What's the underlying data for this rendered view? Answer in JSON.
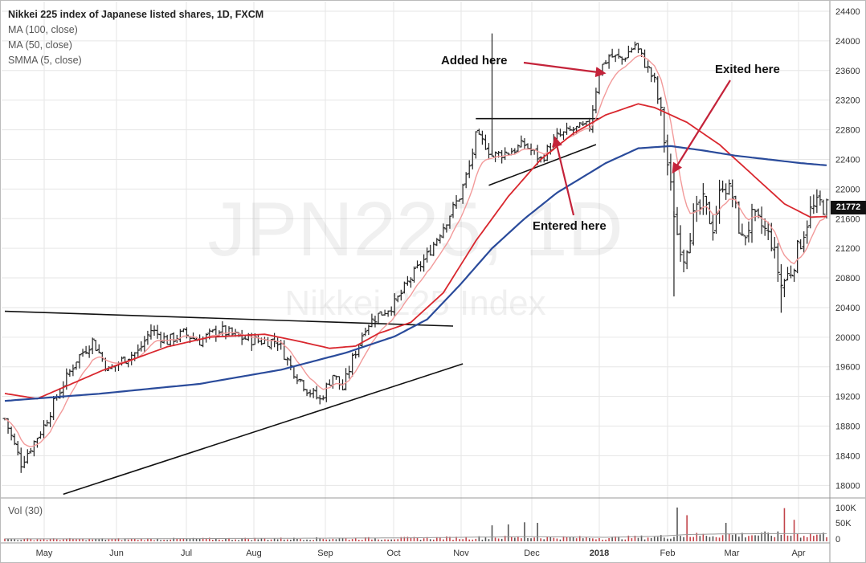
{
  "legend": {
    "title": "Nikkei 225 index of Japanese listed shares, 1D, FXCM",
    "ma100": "MA (100, close)",
    "ma50": "MA (50, close)",
    "smma5": "SMMA (5, close)"
  },
  "watermark": {
    "symbol": "JPN225, 1D",
    "name": "Nikkei 225 Index"
  },
  "volume_label": "Vol (30)",
  "annotations": {
    "added": "Added here",
    "entered": "Entered here",
    "exited": "Exited here"
  },
  "last_price": "21772",
  "colors": {
    "ma100": "#2a4b9b",
    "ma50": "#d9272e",
    "smma5": "#f29a9a",
    "bars": "#222222",
    "volume_up": "#c2444a",
    "volume_down": "#555555",
    "grid": "#e6e6e6",
    "trendlines": "#111111",
    "arrows": "#c4233a"
  },
  "chart_data": {
    "type": "ohlc",
    "instrument": "JPN225",
    "timeframe": "1D",
    "y_ticks": [
      18000,
      18400,
      18800,
      19200,
      19600,
      20000,
      20400,
      20800,
      21200,
      21600,
      22000,
      22400,
      22800,
      23200,
      23600,
      24000,
      24400
    ],
    "ylim": [
      17830,
      24530
    ],
    "x_ticks": [
      "May",
      "Jun",
      "Jul",
      "Aug",
      "Sep",
      "Oct",
      "Nov",
      "Dec",
      "2018",
      "Feb",
      "Mar",
      "Apr"
    ],
    "volume_ticks": [
      "100K",
      "50K",
      "0"
    ],
    "price_path": [
      [
        0,
        18900
      ],
      [
        5,
        18300
      ],
      [
        12,
        18800
      ],
      [
        16,
        19200
      ],
      [
        22,
        19700
      ],
      [
        27,
        19950
      ],
      [
        32,
        19550
      ],
      [
        38,
        19750
      ],
      [
        41,
        19800
      ],
      [
        45,
        20100
      ],
      [
        50,
        19950
      ],
      [
        55,
        20050
      ],
      [
        60,
        19950
      ],
      [
        66,
        20100
      ],
      [
        72,
        20000
      ],
      [
        78,
        19950
      ],
      [
        84,
        19950
      ],
      [
        88,
        19600
      ],
      [
        93,
        19300
      ],
      [
        97,
        19150
      ],
      [
        101,
        19500
      ],
      [
        104,
        19300
      ],
      [
        107,
        19700
      ],
      [
        111,
        20150
      ],
      [
        115,
        20300
      ],
      [
        120,
        20450
      ],
      [
        125,
        20800
      ],
      [
        130,
        21100
      ],
      [
        135,
        21500
      ],
      [
        140,
        21900
      ],
      [
        143,
        22300
      ],
      [
        145,
        22700
      ],
      [
        148,
        22600
      ],
      [
        150,
        22450
      ],
      [
        155,
        22500
      ],
      [
        160,
        22600
      ],
      [
        165,
        22400
      ],
      [
        170,
        22700
      ],
      [
        175,
        22800
      ],
      [
        180,
        22850
      ],
      [
        183,
        23600
      ],
      [
        186,
        23800
      ],
      [
        190,
        23750
      ],
      [
        194,
        23950
      ],
      [
        197,
        23700
      ],
      [
        200,
        23450
      ],
      [
        202,
        23000
      ],
      [
        205,
        22000
      ],
      [
        207,
        21400
      ],
      [
        209,
        21100
      ],
      [
        212,
        21600
      ],
      [
        215,
        21800
      ],
      [
        218,
        21500
      ],
      [
        221,
        22100
      ],
      [
        224,
        21900
      ],
      [
        227,
        21300
      ],
      [
        230,
        21600
      ],
      [
        233,
        21500
      ],
      [
        236,
        21300
      ],
      [
        239,
        20700
      ],
      [
        242,
        20900
      ],
      [
        245,
        21300
      ],
      [
        248,
        21700
      ],
      [
        251,
        21800
      ],
      [
        253,
        21750
      ]
    ],
    "ma100_path": [
      [
        0,
        19140
      ],
      [
        30,
        19240
      ],
      [
        60,
        19370
      ],
      [
        85,
        19560
      ],
      [
        105,
        19790
      ],
      [
        120,
        20010
      ],
      [
        130,
        20240
      ],
      [
        140,
        20700
      ],
      [
        150,
        21200
      ],
      [
        160,
        21600
      ],
      [
        170,
        21950
      ],
      [
        185,
        22350
      ],
      [
        195,
        22550
      ],
      [
        205,
        22580
      ],
      [
        215,
        22520
      ],
      [
        225,
        22450
      ],
      [
        235,
        22400
      ],
      [
        245,
        22350
      ],
      [
        253,
        22320
      ]
    ],
    "ma50_path": [
      [
        0,
        19240
      ],
      [
        10,
        19170
      ],
      [
        30,
        19550
      ],
      [
        50,
        19870
      ],
      [
        63,
        20000
      ],
      [
        80,
        20040
      ],
      [
        90,
        19950
      ],
      [
        100,
        19850
      ],
      [
        108,
        19880
      ],
      [
        115,
        20050
      ],
      [
        125,
        20200
      ],
      [
        135,
        20600
      ],
      [
        145,
        21300
      ],
      [
        155,
        21900
      ],
      [
        165,
        22400
      ],
      [
        175,
        22750
      ],
      [
        185,
        23000
      ],
      [
        195,
        23150
      ],
      [
        200,
        23100
      ],
      [
        210,
        22900
      ],
      [
        220,
        22600
      ],
      [
        230,
        22200
      ],
      [
        240,
        21800
      ],
      [
        248,
        21620
      ],
      [
        253,
        21630
      ]
    ],
    "volume_profile": [
      [
        0,
        8
      ],
      [
        30,
        8
      ],
      [
        60,
        9
      ],
      [
        90,
        10
      ],
      [
        120,
        11
      ],
      [
        140,
        13
      ],
      [
        160,
        15
      ],
      [
        175,
        14
      ],
      [
        185,
        13
      ],
      [
        200,
        16
      ],
      [
        210,
        22
      ],
      [
        220,
        24
      ],
      [
        235,
        25
      ],
      [
        253,
        25
      ]
    ],
    "volume_spikes": [
      [
        150,
        52
      ],
      [
        155,
        55
      ],
      [
        160,
        62
      ],
      [
        164,
        60
      ],
      [
        207,
        110
      ],
      [
        210,
        85
      ],
      [
        222,
        60
      ],
      [
        240,
        108
      ],
      [
        243,
        70
      ]
    ]
  }
}
